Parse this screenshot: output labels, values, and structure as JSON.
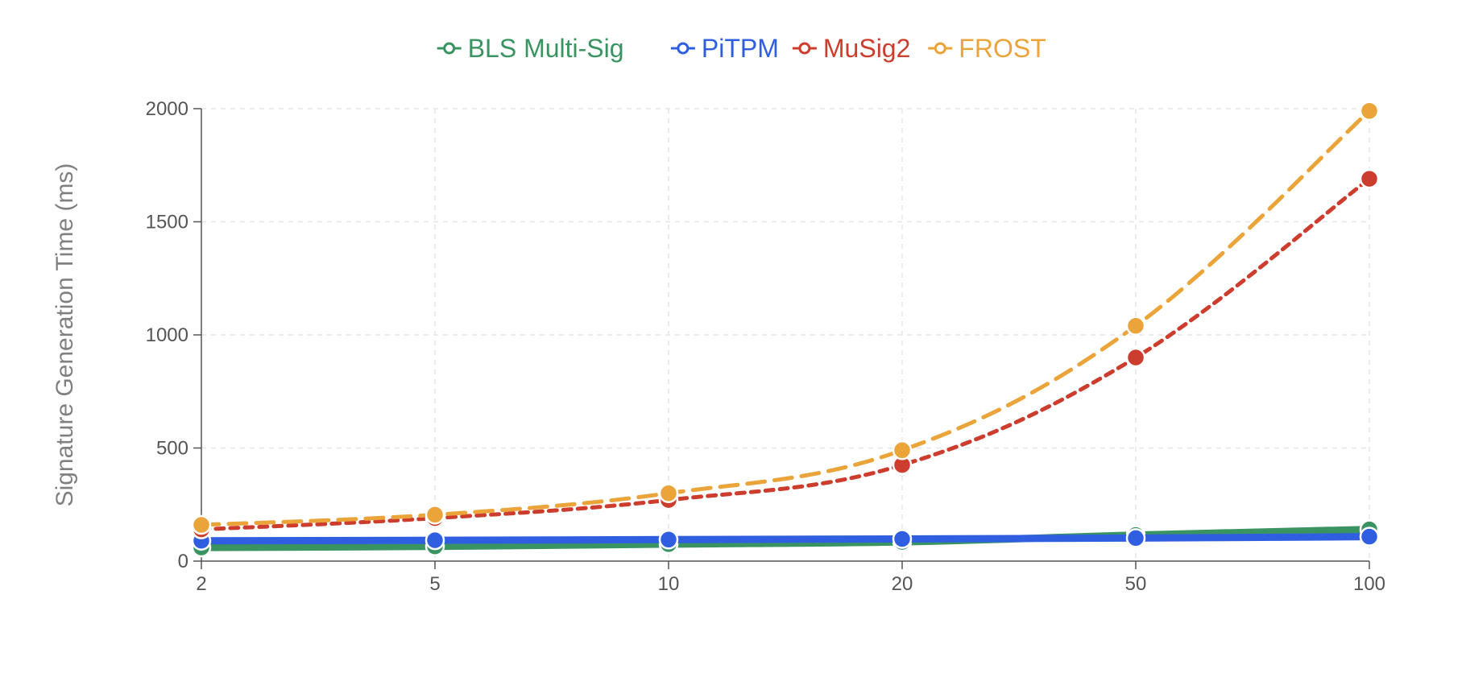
{
  "chart_data": {
    "type": "line",
    "title": "",
    "xlabel": "",
    "ylabel": "Signature Generation Time (ms)",
    "x_scale": "categorical",
    "categories": [
      "2",
      "5",
      "10",
      "20",
      "50",
      "100"
    ],
    "ylim": [
      0,
      2000
    ],
    "yticks": [
      "0",
      "500",
      "1000",
      "1500",
      "2000"
    ],
    "grid": true,
    "legend_position": "top-center",
    "series": [
      {
        "name": "BLS Multi-Sig",
        "color": "#3a9462",
        "dash": "solid",
        "values": [
          60,
          65,
          75,
          85,
          115,
          140
        ]
      },
      {
        "name": "PiTPM",
        "color": "#2f5fe0",
        "dash": "solid",
        "values": [
          90,
          92,
          95,
          98,
          102,
          108
        ]
      },
      {
        "name": "MuSig2",
        "color": "#cd3d2e",
        "dash": "dotted",
        "values": [
          140,
          190,
          270,
          425,
          900,
          1690
        ]
      },
      {
        "name": "FROST",
        "color": "#eaa43a",
        "dash": "dashed",
        "values": [
          160,
          205,
          300,
          490,
          1040,
          1990
        ]
      }
    ]
  }
}
